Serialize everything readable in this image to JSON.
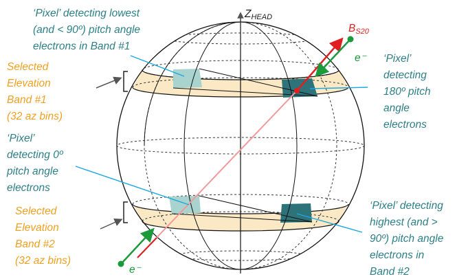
{
  "axis": {
    "z_label": "Z",
    "z_sub": "HEAD",
    "b_label": "B",
    "b_sub": "S20",
    "electron_top": "e⁻",
    "electron_bottom": "e⁻"
  },
  "labels": {
    "pixel_lowest": [
      "‘Pixel’ detecting lowest",
      "(and < 90º) pitch angle",
      "electrons in Band #1"
    ],
    "band1": [
      "Selected",
      "Elevation",
      "Band #1",
      "(32 az bins)"
    ],
    "pixel_180": [
      "‘Pixel’",
      "detecting",
      "180º pitch",
      "angle",
      "electrons"
    ],
    "pixel_0": [
      "‘Pixel’",
      "detecting 0º",
      "pitch angle",
      "electrons"
    ],
    "band2": [
      "Selected",
      "Elevation",
      "Band #2",
      "(32 az bins)"
    ],
    "pixel_highest": [
      "‘Pixel’ detecting",
      "highest (and >",
      "90º) pitch angle",
      "electrons in",
      "Band #2"
    ]
  },
  "colors": {
    "teal_text": "#2e7f86",
    "orange_text": "#f0a020",
    "band_fill": "#fbe9c6",
    "pixel_dark": "#2d7379",
    "pixel_light": "#a9d3cf",
    "b_arrow": "#e02020",
    "e_arrow": "#1a9a3a",
    "pointer": "#19a8e0"
  }
}
